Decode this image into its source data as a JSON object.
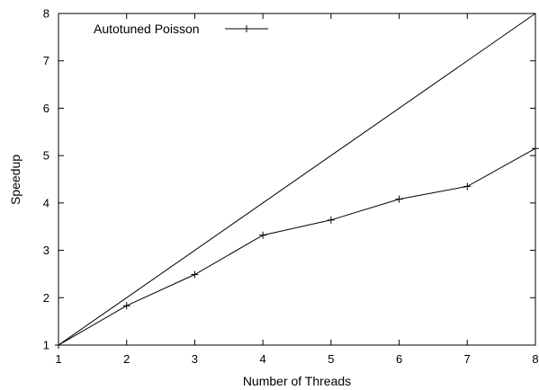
{
  "chart_data": {
    "type": "line",
    "xlabel": "Number of Threads",
    "ylabel": "Speedup",
    "xlim": [
      1,
      8
    ],
    "ylim": [
      1,
      8
    ],
    "xticks": [
      1,
      2,
      3,
      4,
      5,
      6,
      7,
      8
    ],
    "yticks": [
      1,
      2,
      3,
      4,
      5,
      6,
      7,
      8
    ],
    "grid": false,
    "legend_position": "top-left",
    "series": [
      {
        "name": "Autotuned Poisson",
        "marker": "plus",
        "color": "#000000",
        "x": [
          1,
          2,
          3,
          4,
          5,
          6,
          7,
          8
        ],
        "y": [
          1.0,
          1.83,
          2.49,
          3.32,
          3.64,
          4.08,
          4.35,
          5.15
        ]
      },
      {
        "marker": "none",
        "color": "#000000",
        "x": [
          1,
          8
        ],
        "y": [
          1,
          8
        ]
      }
    ]
  }
}
